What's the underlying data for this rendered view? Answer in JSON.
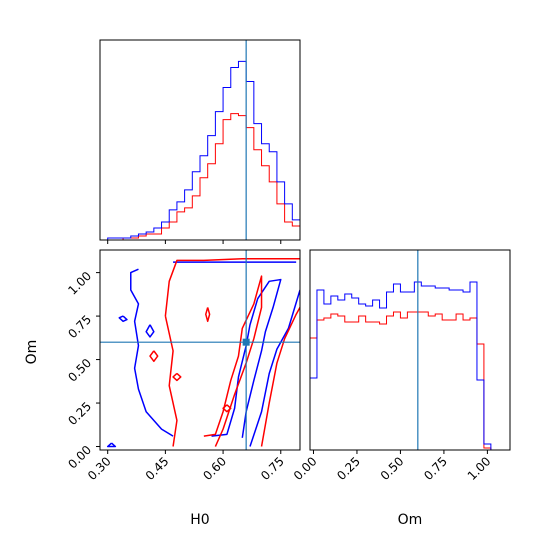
{
  "chart_data": {
    "type": "corner",
    "params": [
      "H0",
      "Om"
    ],
    "truth": {
      "H0": 0.66,
      "Om": 0.6
    },
    "colors": {
      "blue": "#0000ff",
      "red": "#ff0000",
      "truth": "#1f77b4"
    },
    "axes": {
      "H0": {
        "label": "H0",
        "range": [
          0.28,
          0.8
        ],
        "ticks": [
          "0.30",
          "0.45",
          "0.60",
          "0.75"
        ],
        "tick_values": [
          0.3,
          0.45,
          0.6,
          0.75
        ]
      },
      "Om": {
        "label": "Om",
        "range": [
          -0.02,
          1.13
        ],
        "ticks": [
          "0.00",
          "0.25",
          "0.50",
          "0.75",
          "1.00"
        ],
        "tick_values": [
          0.0,
          0.25,
          0.5,
          0.75,
          1.0
        ]
      }
    },
    "hist_H0": {
      "bin_edges": [
        0.28,
        0.3,
        0.32,
        0.34,
        0.36,
        0.38,
        0.4,
        0.42,
        0.44,
        0.46,
        0.48,
        0.5,
        0.52,
        0.54,
        0.56,
        0.58,
        0.6,
        0.62,
        0.64,
        0.66,
        0.68,
        0.7,
        0.72,
        0.74,
        0.76,
        0.78,
        0.8
      ],
      "series": [
        {
          "color": "blue",
          "values": [
            0,
            1,
            1,
            1,
            2,
            3,
            4,
            6,
            9,
            15,
            19,
            25,
            34,
            42,
            52,
            64,
            76,
            86,
            89,
            79,
            58,
            48,
            44,
            29,
            18,
            10
          ]
        },
        {
          "color": "red",
          "values": [
            0,
            0,
            0,
            1,
            1,
            2,
            3,
            3,
            6,
            9,
            14,
            16,
            22,
            31,
            38,
            48,
            60,
            63,
            62,
            56,
            45,
            37,
            29,
            18,
            9,
            7
          ]
        }
      ]
    },
    "hist_Om": {
      "bin_edges": [
        -0.02,
        0.02,
        0.06,
        0.1,
        0.14,
        0.18,
        0.22,
        0.26,
        0.3,
        0.34,
        0.38,
        0.42,
        0.46,
        0.5,
        0.54,
        0.58,
        0.62,
        0.66,
        0.7,
        0.74,
        0.78,
        0.82,
        0.86,
        0.9,
        0.94,
        0.98,
        1.02
      ],
      "series": [
        {
          "color": "blue",
          "values": [
            0.36,
            0.8,
            0.73,
            0.77,
            0.75,
            0.78,
            0.76,
            0.73,
            0.72,
            0.75,
            0.71,
            0.79,
            0.83,
            0.79,
            0.79,
            0.84,
            0.82,
            0.82,
            0.81,
            0.81,
            0.8,
            0.8,
            0.79,
            0.84,
            0.35,
            0.03
          ]
        },
        {
          "color": "red",
          "values": [
            0.56,
            0.65,
            0.66,
            0.68,
            0.67,
            0.64,
            0.64,
            0.67,
            0.64,
            0.64,
            0.63,
            0.67,
            0.69,
            0.66,
            0.69,
            0.69,
            0.69,
            0.67,
            0.68,
            0.65,
            0.65,
            0.68,
            0.65,
            0.66,
            0.53,
            0.01
          ]
        }
      ]
    },
    "contours": [
      {
        "color": "blue",
        "points": [
          [
            0.38,
            1.02
          ],
          [
            0.36,
            1.0
          ],
          [
            0.36,
            0.9
          ],
          [
            0.38,
            0.82
          ],
          [
            0.37,
            0.72
          ],
          [
            0.38,
            0.58
          ],
          [
            0.37,
            0.45
          ],
          [
            0.38,
            0.33
          ],
          [
            0.4,
            0.2
          ],
          [
            0.44,
            0.1
          ],
          [
            0.47,
            0.06
          ]
        ]
      },
      {
        "color": "blue",
        "points": [
          [
            0.47,
            1.06
          ],
          [
            0.53,
            1.06
          ],
          [
            0.65,
            1.06
          ],
          [
            0.72,
            1.06
          ],
          [
            0.79,
            1.06
          ]
        ]
      },
      {
        "color": "blue",
        "points": [
          [
            0.57,
            0.06
          ],
          [
            0.61,
            0.07
          ],
          [
            0.63,
            0.22
          ],
          [
            0.64,
            0.4
          ],
          [
            0.66,
            0.58
          ],
          [
            0.67,
            0.7
          ],
          [
            0.69,
            0.85
          ],
          [
            0.72,
            0.95
          ],
          [
            0.75,
            0.96
          ],
          [
            0.73,
            0.8
          ],
          [
            0.71,
            0.66
          ],
          [
            0.7,
            0.55
          ],
          [
            0.68,
            0.38
          ],
          [
            0.66,
            0.2
          ],
          [
            0.65,
            0.05
          ]
        ]
      },
      {
        "color": "blue",
        "points": [
          [
            0.67,
            0.0
          ],
          [
            0.7,
            0.2
          ],
          [
            0.72,
            0.42
          ],
          [
            0.74,
            0.56
          ],
          [
            0.77,
            0.68
          ],
          [
            0.8,
            0.9
          ]
        ]
      },
      {
        "color": "blue",
        "points": [
          [
            0.34,
            0.75
          ],
          [
            0.35,
            0.73
          ],
          [
            0.34,
            0.72
          ],
          [
            0.33,
            0.74
          ],
          [
            0.34,
            0.75
          ]
        ]
      },
      {
        "color": "blue",
        "points": [
          [
            0.41,
            0.7
          ],
          [
            0.42,
            0.66
          ],
          [
            0.41,
            0.63
          ],
          [
            0.4,
            0.66
          ],
          [
            0.41,
            0.7
          ]
        ]
      },
      {
        "color": "blue",
        "points": [
          [
            0.31,
            0.02
          ],
          [
            0.32,
            0.0
          ],
          [
            0.3,
            0.0
          ],
          [
            0.31,
            0.02
          ]
        ]
      },
      {
        "color": "red",
        "points": [
          [
            0.45,
            0.75
          ],
          [
            0.46,
            0.95
          ],
          [
            0.48,
            1.07
          ],
          [
            0.55,
            1.07
          ],
          [
            0.65,
            1.08
          ],
          [
            0.78,
            1.08
          ],
          [
            0.8,
            1.08
          ]
        ]
      },
      {
        "color": "red",
        "points": [
          [
            0.45,
            0.75
          ],
          [
            0.47,
            0.55
          ],
          [
            0.46,
            0.35
          ],
          [
            0.48,
            0.15
          ],
          [
            0.47,
            0.0
          ]
        ]
      },
      {
        "color": "red",
        "points": [
          [
            0.55,
            0.06
          ],
          [
            0.58,
            0.07
          ],
          [
            0.6,
            0.2
          ],
          [
            0.62,
            0.38
          ],
          [
            0.64,
            0.52
          ],
          [
            0.65,
            0.68
          ],
          [
            0.68,
            0.82
          ],
          [
            0.7,
            0.98
          ],
          [
            0.7,
            0.8
          ],
          [
            0.68,
            0.62
          ],
          [
            0.66,
            0.48
          ],
          [
            0.63,
            0.3
          ],
          [
            0.6,
            0.1
          ],
          [
            0.58,
            0.0
          ]
        ]
      },
      {
        "color": "red",
        "points": [
          [
            0.7,
            0.0
          ],
          [
            0.72,
            0.25
          ],
          [
            0.74,
            0.48
          ],
          [
            0.76,
            0.62
          ],
          [
            0.79,
            0.76
          ],
          [
            0.8,
            0.8
          ]
        ]
      },
      {
        "color": "red",
        "points": [
          [
            0.56,
            0.8
          ],
          [
            0.565,
            0.76
          ],
          [
            0.56,
            0.72
          ],
          [
            0.555,
            0.76
          ],
          [
            0.56,
            0.8
          ]
        ]
      },
      {
        "color": "red",
        "points": [
          [
            0.42,
            0.55
          ],
          [
            0.43,
            0.52
          ],
          [
            0.42,
            0.49
          ],
          [
            0.41,
            0.52
          ],
          [
            0.42,
            0.55
          ]
        ]
      },
      {
        "color": "red",
        "points": [
          [
            0.48,
            0.42
          ],
          [
            0.49,
            0.4
          ],
          [
            0.48,
            0.38
          ],
          [
            0.47,
            0.4
          ],
          [
            0.48,
            0.42
          ]
        ]
      },
      {
        "color": "red",
        "points": [
          [
            0.61,
            0.24
          ],
          [
            0.62,
            0.22
          ],
          [
            0.61,
            0.2
          ],
          [
            0.6,
            0.22
          ],
          [
            0.61,
            0.24
          ]
        ]
      }
    ]
  }
}
